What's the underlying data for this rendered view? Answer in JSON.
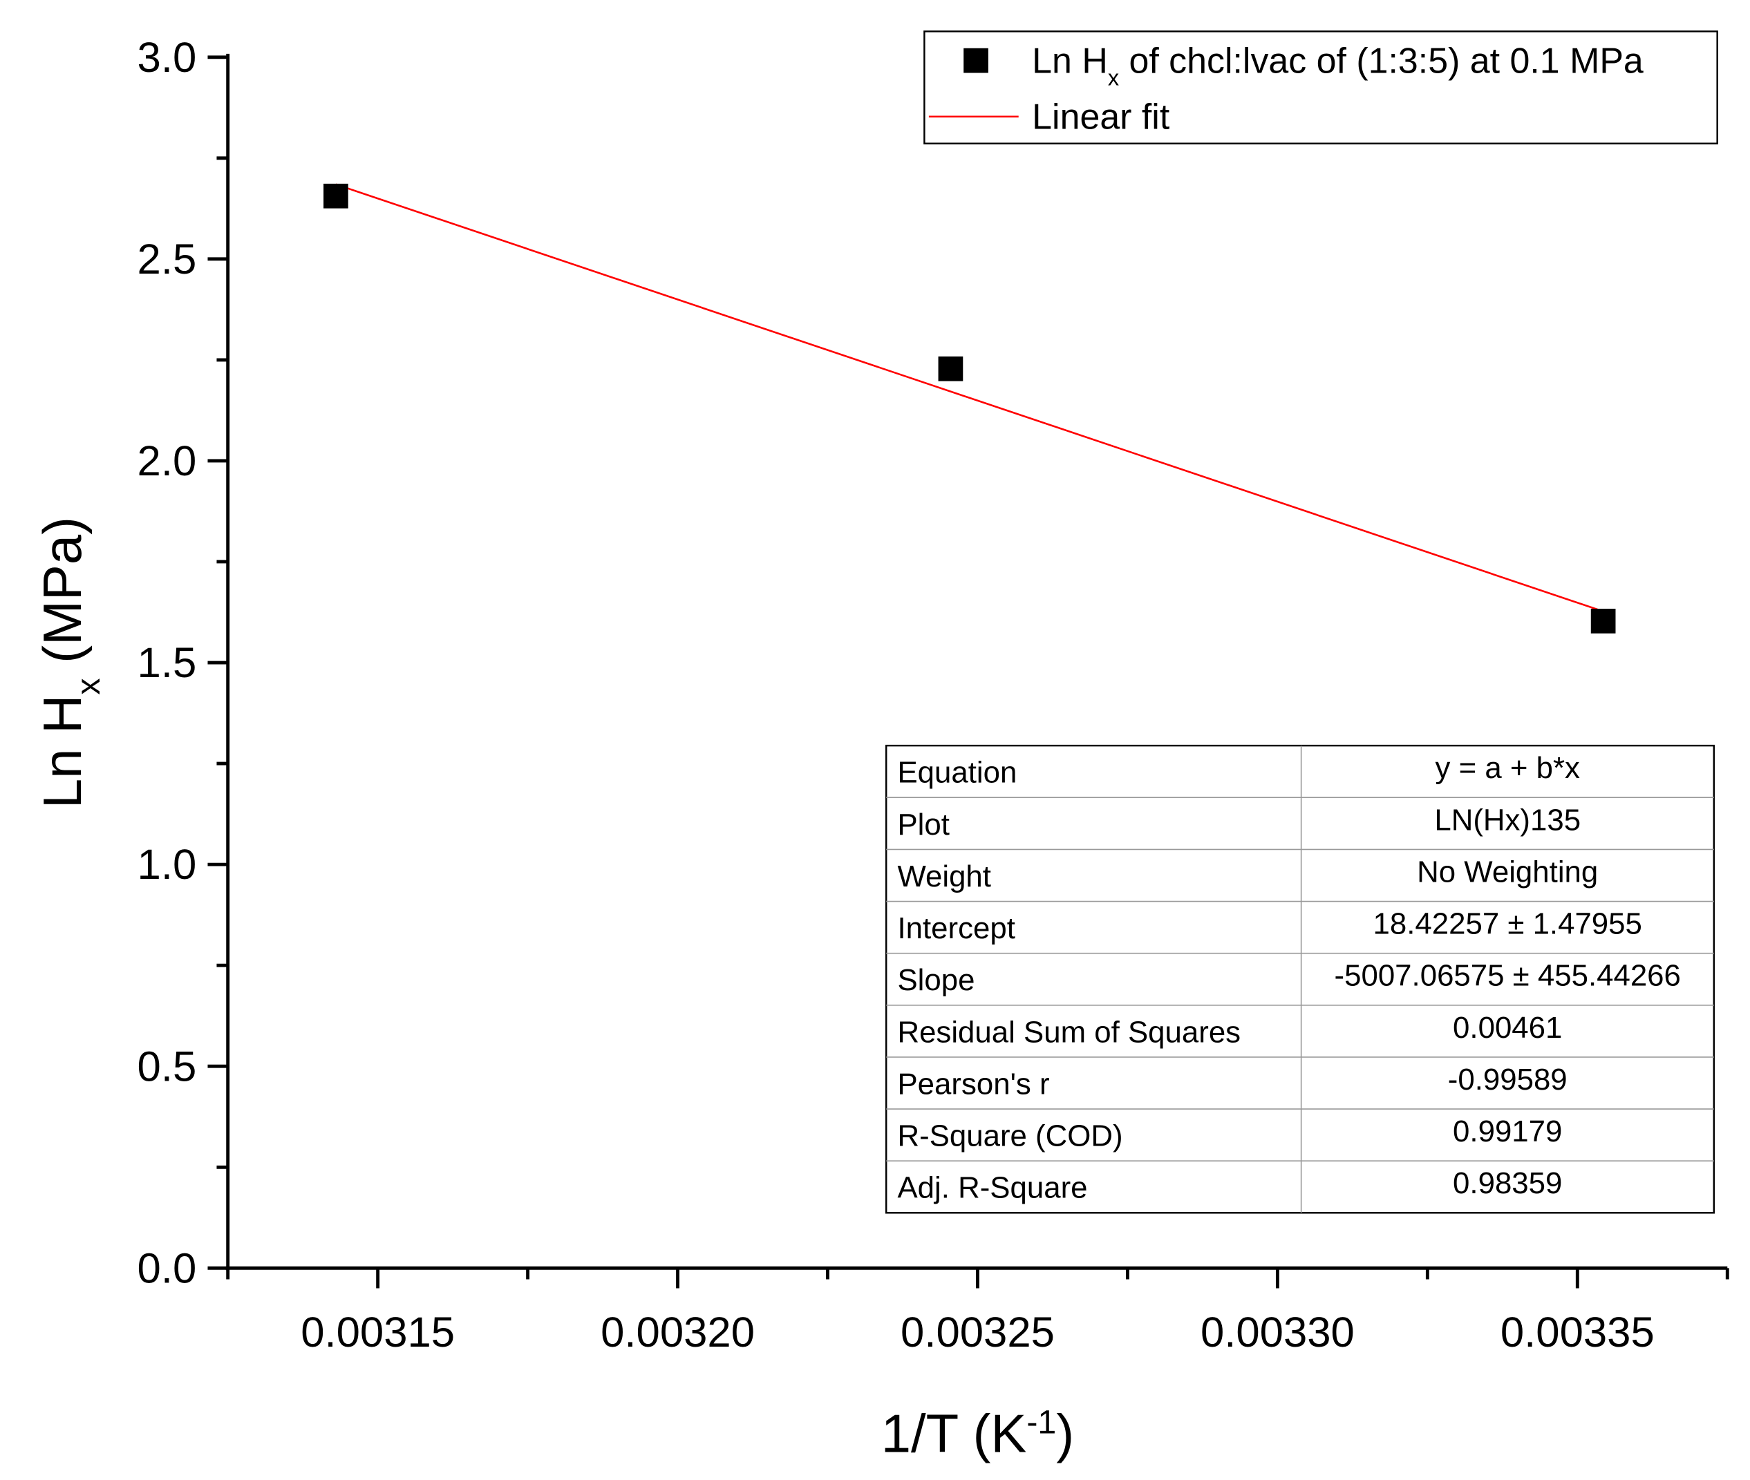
{
  "chart_data": {
    "type": "scatter",
    "xlabel": [
      "1/T (K",
      "-1",
      ")"
    ],
    "ylabel": [
      "Ln H",
      "x",
      " (MPa)"
    ],
    "xlim": [
      0.003125,
      0.003375
    ],
    "xticks": [
      0.00315,
      {
        "value": 0.0032,
        "label": "0.00320"
      },
      0.00325,
      {
        "value": 0.0033,
        "label": "0.00330"
      },
      0.00335
    ],
    "ylim": [
      0,
      3
    ],
    "yticks": [
      {
        "value": 0,
        "label": "0.0"
      },
      0.5,
      {
        "value": 1,
        "label": "1.0"
      },
      1.5,
      {
        "value": 2,
        "label": "2.0"
      },
      2.5,
      {
        "value": 3,
        "label": "3.0"
      }
    ],
    "legend": "top-right",
    "series": [
      {
        "name": [
          "Ln H",
          "x",
          " of chcl:lvac of (1:3:5) at 0.1 MPa"
        ],
        "type": "scatter",
        "color": "#000000",
        "x": [
          0.003143,
          0.0032455,
          0.0033543
        ],
        "values": [
          2.656,
          2.228,
          1.603
        ]
      },
      {
        "name": [
          "Linear fit"
        ],
        "type": "line",
        "color": "#ff0000",
        "x": [
          0.003143,
          0.0033543
        ],
        "values": [
          2.685,
          1.627
        ]
      }
    ],
    "fit_table": {
      "rows": [
        [
          "Equation",
          "y = a + b*x"
        ],
        [
          "Plot",
          "LN(Hx)135"
        ],
        [
          "Weight",
          "No Weighting"
        ],
        [
          "Intercept",
          "18.42257 ± 1.47955"
        ],
        [
          "Slope",
          "-5007.06575 ± 455.44266"
        ],
        [
          "Residual Sum of Squares",
          "0.00461"
        ],
        [
          "Pearson's r",
          "-0.99589"
        ],
        [
          "R-Square (COD)",
          "0.99179"
        ],
        [
          "Adj. R-Square",
          "0.98359"
        ]
      ]
    }
  }
}
